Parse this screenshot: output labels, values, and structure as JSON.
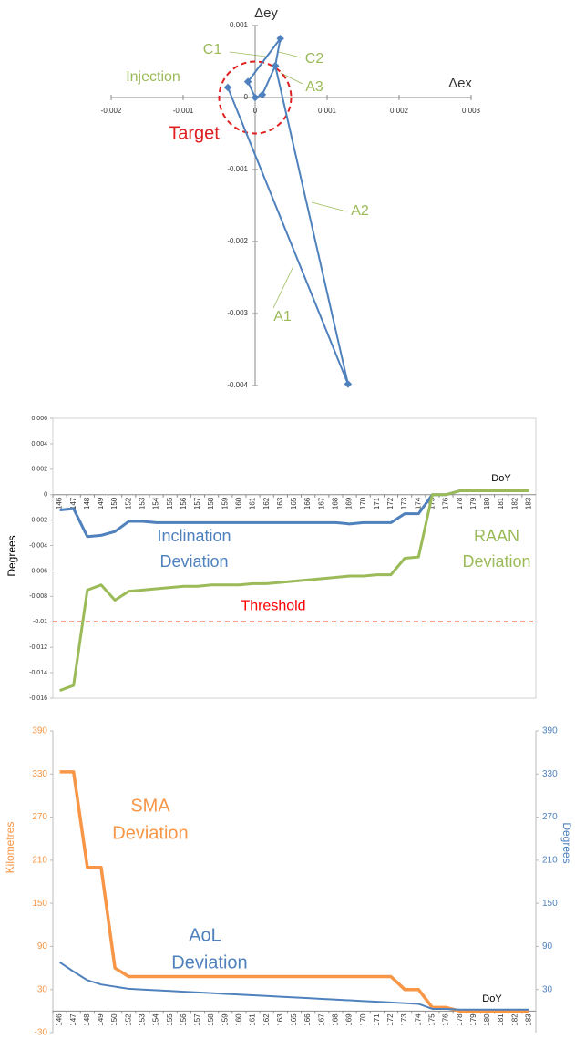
{
  "chart_data": [
    {
      "type": "line",
      "x_label": "Δex",
      "y_label": "Δey",
      "x": [
        -0.00038,
        0.00129,
        0.00028,
        0.0001,
        0.0,
        -0.0001,
        0.00035,
        0.00028
      ],
      "series": [
        {
          "color": "#4f81bd",
          "values": [
            0.00014,
            -0.00398,
            0.00044,
            4e-05,
            0.0,
            0.00022,
            0.00082,
            0.00044
          ]
        }
      ],
      "xlim": [
        -0.002,
        0.003
      ],
      "xticks": [
        -0.002,
        -0.001,
        0,
        0.001,
        0.002,
        0.003
      ],
      "ylim": [
        -0.004,
        0.001
      ],
      "yticks": [
        0.001,
        0,
        -0.001,
        -0.002,
        -0.003,
        -0.004
      ],
      "target": {
        "label": "Target",
        "center": [
          0,
          0
        ],
        "radius": 0.0005,
        "color": "#e02020"
      },
      "annotations": [
        {
          "text": "C1",
          "color": "#9bbb59"
        },
        {
          "text": "C2",
          "color": "#9bbb59"
        },
        {
          "text": "A3",
          "color": "#9bbb59"
        },
        {
          "text": "Injection",
          "color": "#9bbb59"
        },
        {
          "text": "A2",
          "color": "#9bbb59"
        },
        {
          "text": "A1",
          "color": "#9bbb59"
        }
      ]
    },
    {
      "type": "line",
      "y_label": "Degrees",
      "categories": [
        "146",
        "147",
        "148",
        "149",
        "150",
        "152",
        "153",
        "154",
        "155",
        "156",
        "157",
        "158",
        "159",
        "160",
        "161",
        "162",
        "163",
        "165",
        "166",
        "167",
        "168",
        "169",
        "170",
        "171",
        "172",
        "173",
        "174",
        "175",
        "176",
        "178",
        "179",
        "180",
        "181",
        "182",
        "183"
      ],
      "series": [
        {
          "color": "#4f81bd",
          "values": [
            -0.0012,
            -0.0011,
            -0.0033,
            -0.0032,
            -0.0029,
            -0.0021,
            -0.0021,
            -0.0022,
            -0.0022,
            -0.0022,
            -0.0022,
            -0.0022,
            -0.0022,
            -0.0022,
            -0.0022,
            -0.0022,
            -0.0022,
            -0.0022,
            -0.0022,
            -0.0022,
            -0.0022,
            -0.0023,
            -0.0022,
            -0.0022,
            -0.0022,
            -0.0015,
            -0.0015,
            0,
            0,
            0.0003,
            0.0003,
            0.0003,
            0.0003,
            0.0003,
            0.0003
          ]
        },
        {
          "color": "#9bbb59",
          "values": [
            -0.0154,
            -0.015,
            -0.0075,
            -0.0071,
            -0.0083,
            -0.0076,
            -0.0075,
            -0.0074,
            -0.0073,
            -0.0072,
            -0.0072,
            -0.0071,
            -0.0071,
            -0.0071,
            -0.007,
            -0.007,
            -0.0069,
            -0.0068,
            -0.0067,
            -0.0066,
            -0.0065,
            -0.0064,
            -0.0064,
            -0.0063,
            -0.0063,
            -0.005,
            -0.0049,
            0,
            0,
            0.0003,
            0.0003,
            0.0003,
            0.0003,
            0.0003,
            0.0003
          ]
        }
      ],
      "ylim": [
        -0.016,
        0.006
      ],
      "yticks": [
        0.006,
        0.004,
        0.002,
        0,
        -0.002,
        -0.004,
        -0.006,
        -0.008,
        -0.01,
        -0.012,
        -0.014,
        -0.016
      ],
      "threshold": {
        "label": "Threshold",
        "value": -0.01,
        "color": "#ff0000"
      },
      "x_label": "DoY",
      "annotations": [
        {
          "lines": [
            "Inclination",
            "Deviation"
          ],
          "color": "#4f81bd"
        },
        {
          "lines": [
            "RAAN",
            "Deviation"
          ],
          "color": "#9bbb59"
        }
      ]
    },
    {
      "type": "line",
      "y_label": "Kilometres",
      "y2_label": "Degrees",
      "x_label": "DoY",
      "categories": [
        "146",
        "147",
        "148",
        "149",
        "150",
        "152",
        "153",
        "154",
        "155",
        "156",
        "157",
        "158",
        "159",
        "160",
        "161",
        "162",
        "163",
        "165",
        "166",
        "167",
        "168",
        "169",
        "170",
        "171",
        "172",
        "173",
        "174",
        "175",
        "176",
        "178",
        "179",
        "180",
        "181",
        "182",
        "183"
      ],
      "series": [
        {
          "color": "#f79646",
          "values": [
            333,
            333,
            200,
            200,
            60,
            48,
            48,
            48,
            48,
            48,
            48,
            48,
            48,
            48,
            48,
            48,
            48,
            48,
            48,
            48,
            48,
            48,
            48,
            48,
            48,
            30,
            30,
            5,
            5,
            0,
            0,
            0,
            0,
            0,
            0
          ]
        },
        {
          "color": "#4f81bd",
          "axis": "y2",
          "values": [
            68,
            55,
            43,
            37,
            34,
            31,
            30,
            29,
            28,
            27,
            26,
            25,
            24,
            23,
            22,
            21,
            20,
            19,
            18,
            17,
            16,
            15,
            14,
            13,
            12,
            11,
            10,
            3,
            3,
            2,
            2,
            2,
            2,
            2,
            2
          ]
        }
      ],
      "ylim": [
        -30,
        390
      ],
      "yticks": [
        390,
        330,
        270,
        210,
        150,
        90,
        30,
        -30
      ],
      "y2lim": [
        -30,
        390
      ],
      "y2ticks": [
        390,
        330,
        270,
        210,
        150,
        90,
        30
      ],
      "annotations": [
        {
          "lines": [
            "SMA",
            "Deviation"
          ],
          "color": "#f79646"
        },
        {
          "lines": [
            "AoL",
            "Deviation"
          ],
          "color": "#4f81bd"
        }
      ]
    }
  ]
}
